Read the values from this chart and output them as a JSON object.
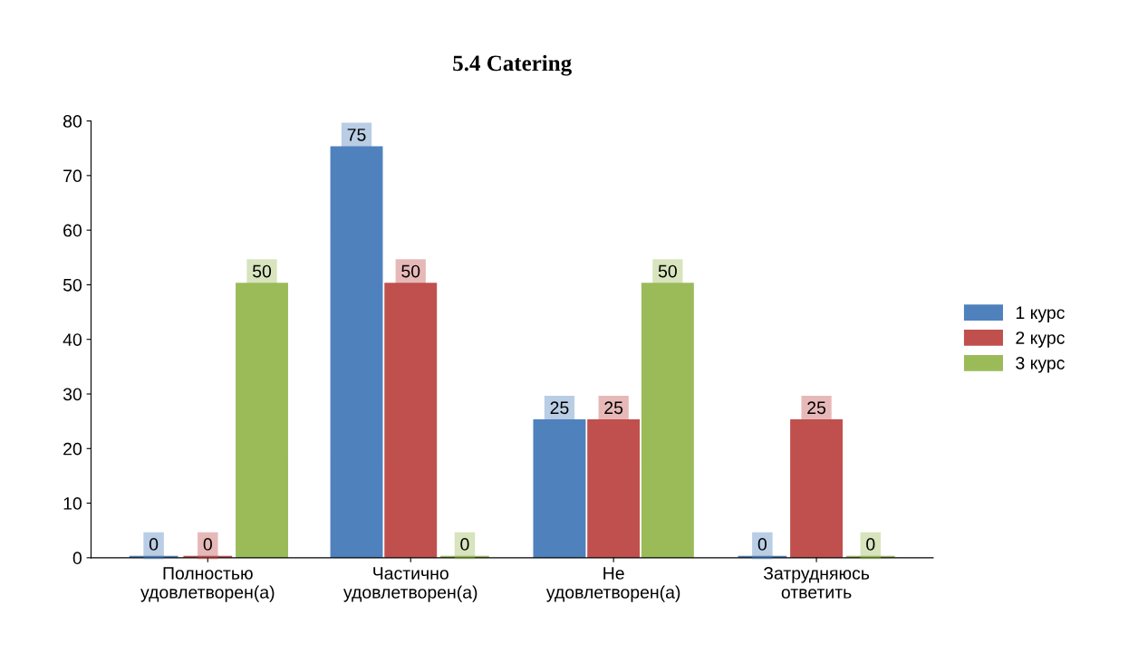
{
  "chart_data": {
    "type": "bar",
    "title": "5.4 Catering",
    "categories": [
      "Полностью\nудовлетворен(а)",
      "Частично\nудовлетворен(а)",
      "Не\nудовлетворен(а)",
      "Затрудняюсь\nответить"
    ],
    "series": [
      {
        "name": "1 курс",
        "color": "#4f81bd",
        "values": [
          0,
          75,
          25,
          0
        ]
      },
      {
        "name": "2 курс",
        "color": "#c0504d",
        "values": [
          0,
          50,
          25,
          25
        ]
      },
      {
        "name": "3 курс",
        "color": "#9bbb59",
        "values": [
          50,
          0,
          50,
          0
        ]
      }
    ],
    "ylim": [
      0,
      80
    ],
    "yticks": [
      0,
      10,
      20,
      30,
      40,
      50,
      60,
      70,
      80
    ],
    "data_labels": true,
    "legend": "right",
    "grid": false
  }
}
